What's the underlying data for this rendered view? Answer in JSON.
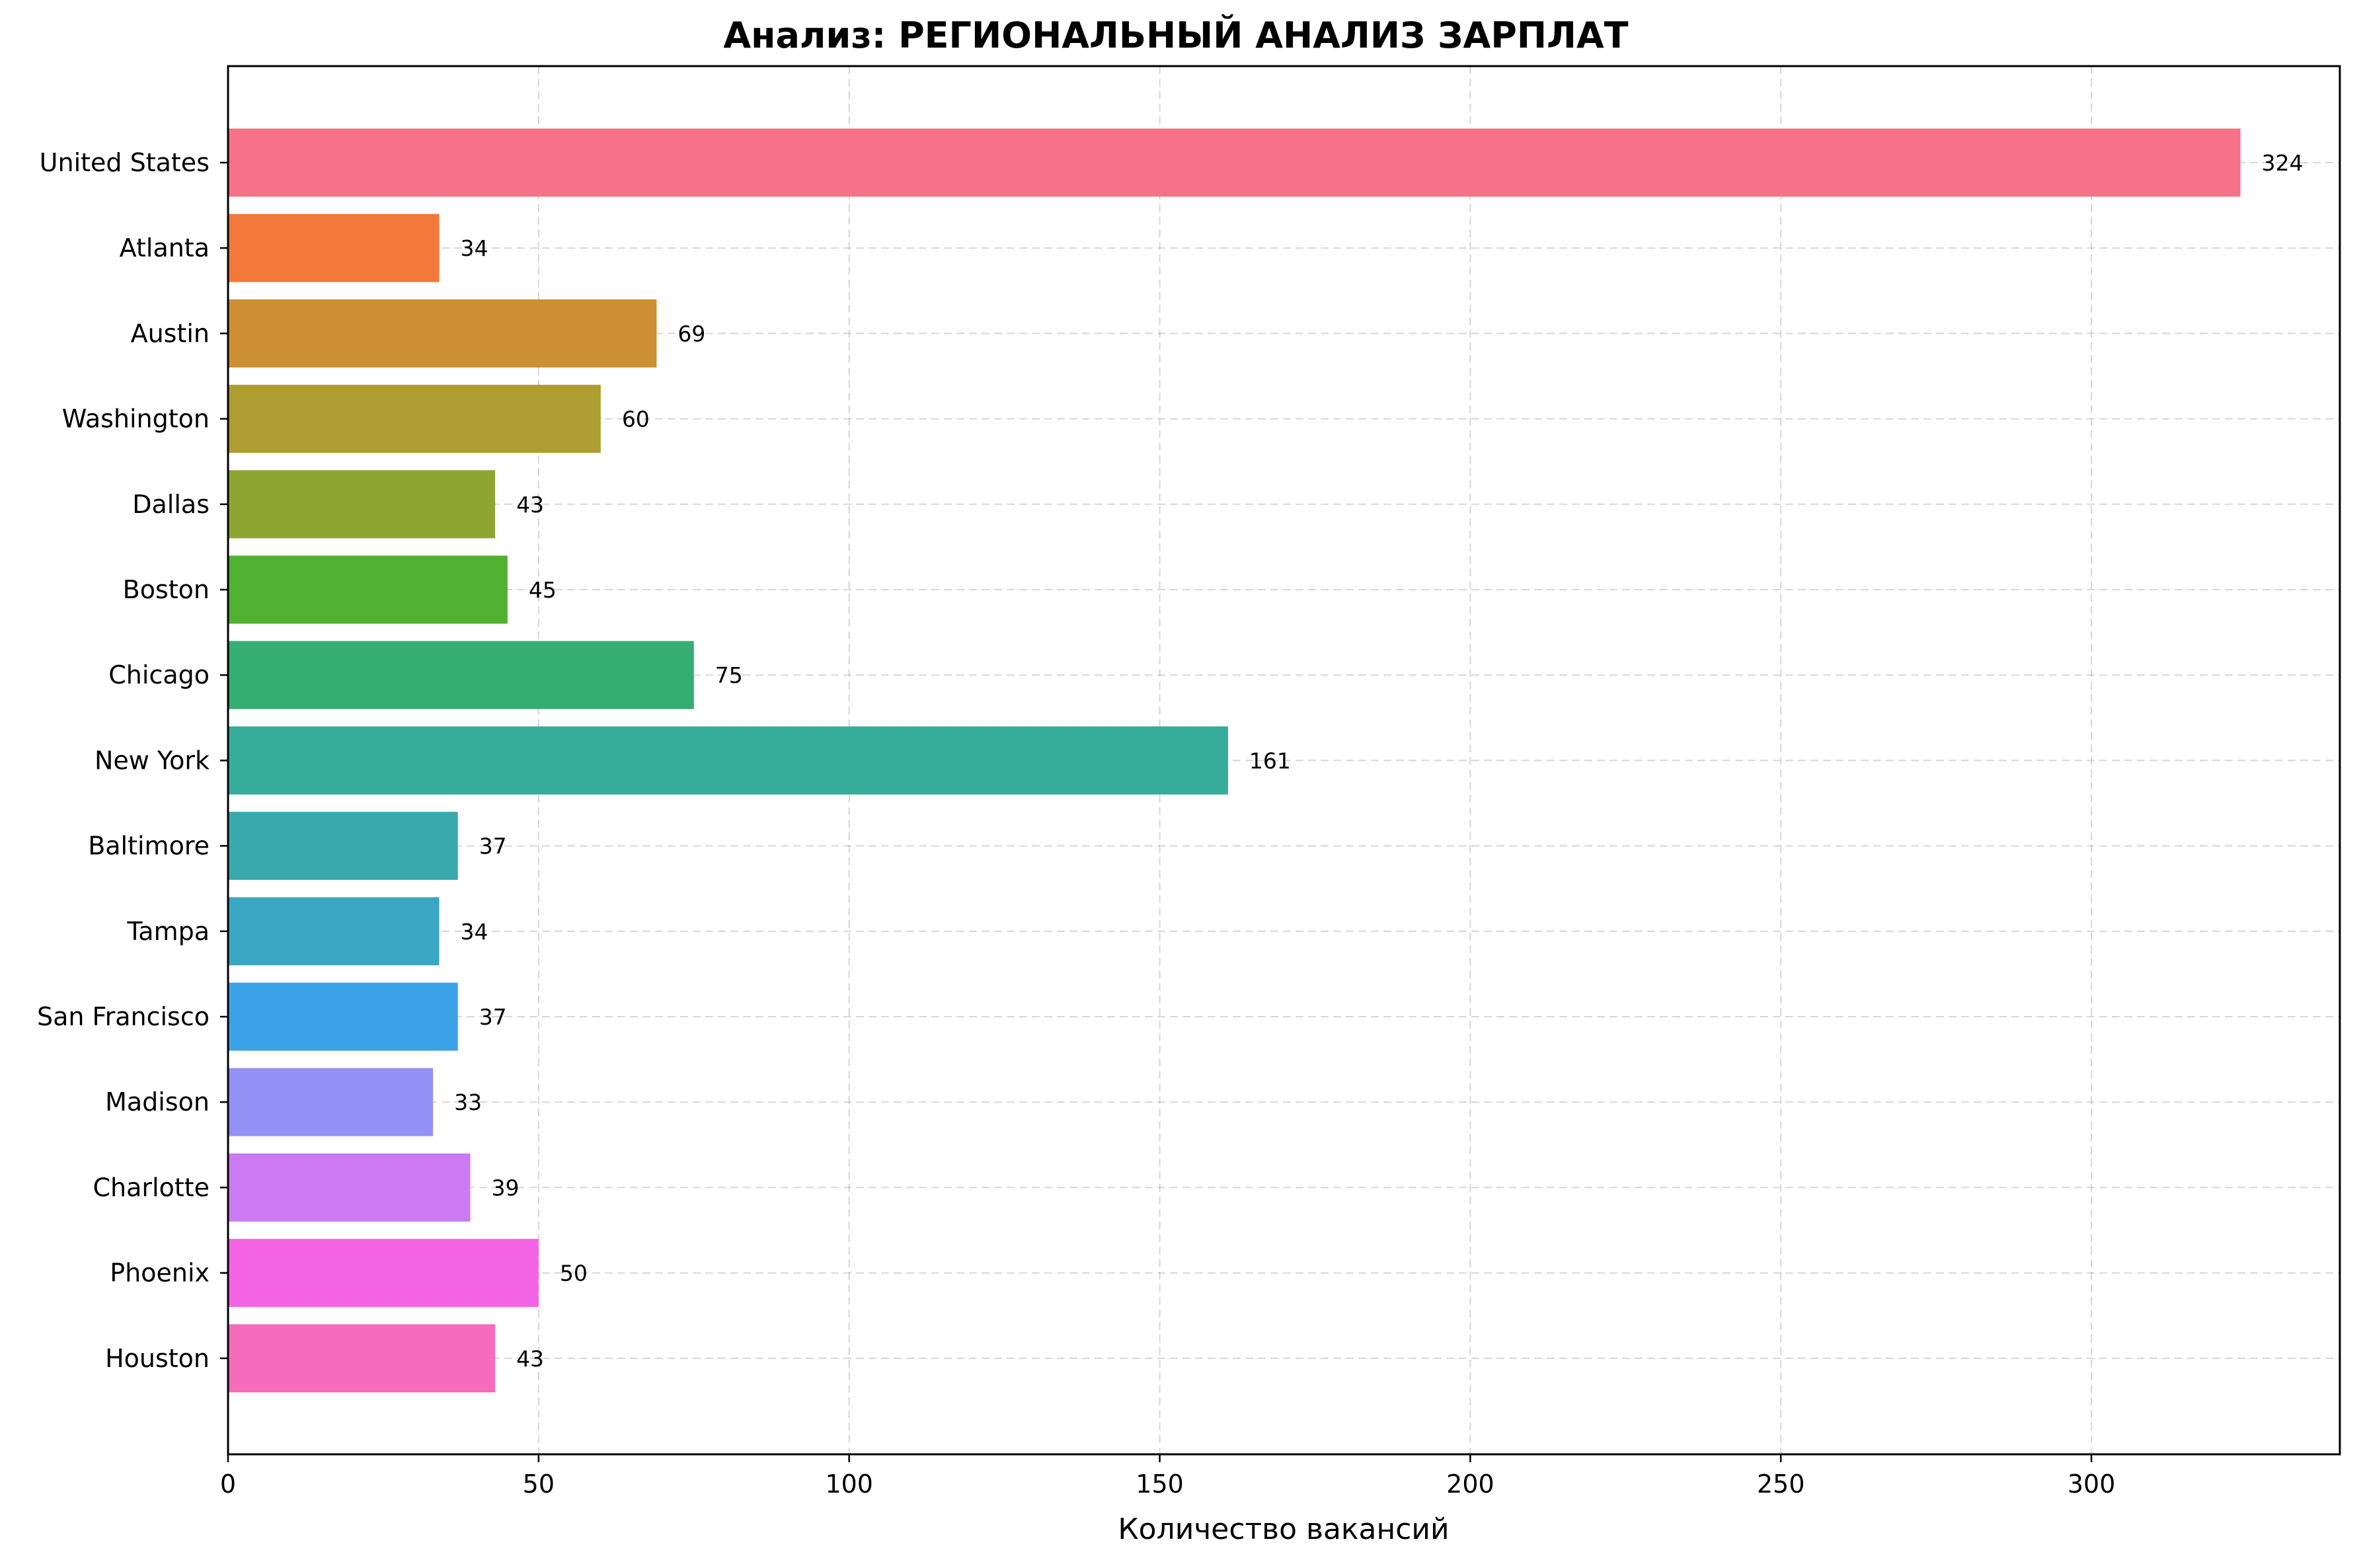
{
  "chart_data": {
    "type": "bar",
    "orientation": "horizontal",
    "title": "Анализ: РЕГИОНАЛЬНЫЙ АНАЛИЗ ЗАРПЛАТ",
    "xlabel": "Количество вакансий",
    "ylabel": "",
    "xlim": [
      0,
      340
    ],
    "xticks": [
      0,
      50,
      100,
      150,
      200,
      250,
      300
    ],
    "grid": true,
    "categories": [
      "United States",
      "Atlanta",
      "Austin",
      "Washington",
      "Dallas",
      "Boston",
      "Chicago",
      "New York",
      "Baltimore",
      "Tampa",
      "San Francisco",
      "Madison",
      "Charlotte",
      "Phoenix",
      "Houston"
    ],
    "values": [
      324,
      34,
      69,
      60,
      43,
      45,
      75,
      161,
      37,
      34,
      37,
      33,
      39,
      50,
      43
    ],
    "colors": [
      "#f77189",
      "#f2793a",
      "#cc8f32",
      "#ae9d31",
      "#8fa531",
      "#50b131",
      "#34ae72",
      "#36ad9a",
      "#38aaae",
      "#39a7c3",
      "#3ca2e8",
      "#9491f4",
      "#cc79f4",
      "#f564e4",
      "#f66bba"
    ]
  }
}
